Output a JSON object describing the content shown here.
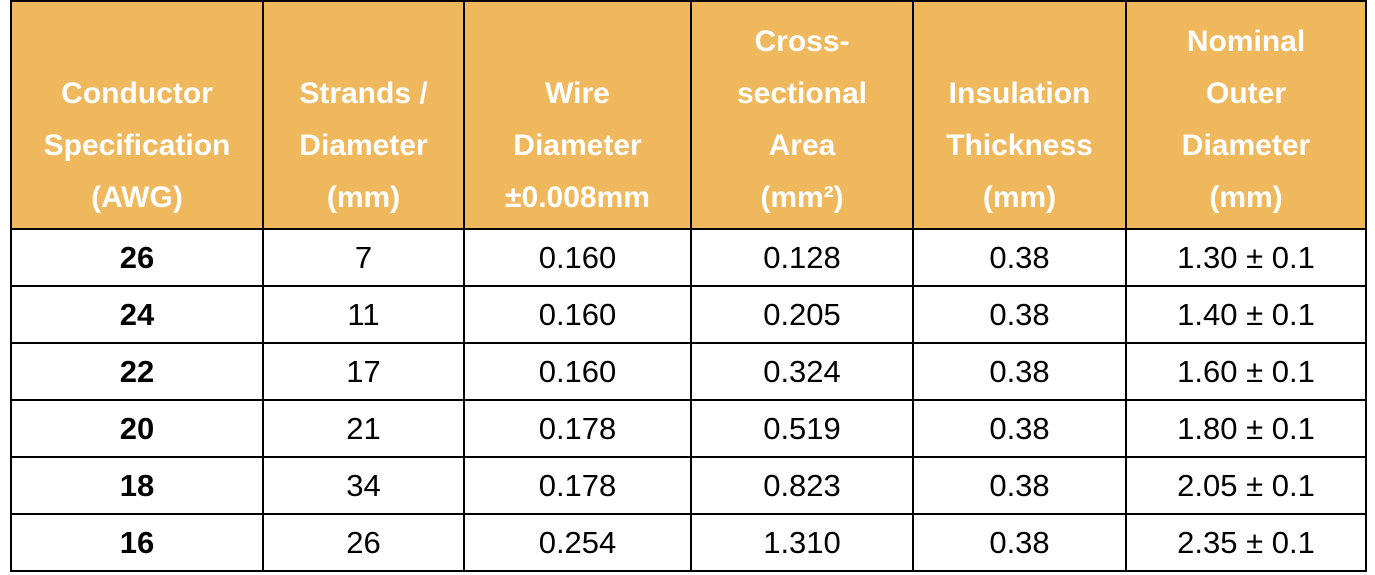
{
  "table": {
    "header": [
      [
        "Conductor",
        "Specification",
        "(AWG)"
      ],
      [
        "Strands /",
        "Diameter",
        "(mm)"
      ],
      [
        "Wire",
        "Diameter",
        "±0.008mm"
      ],
      [
        "Cross-",
        "sectional",
        "Area",
        "(mm²)"
      ],
      [
        "Insulation",
        "Thickness",
        "(mm)"
      ],
      [
        "Nominal",
        "Outer",
        "Diameter",
        "(mm)"
      ]
    ],
    "rows": [
      [
        "26",
        "7",
        "0.160",
        "0.128",
        "0.38",
        "1.30 ± 0.1"
      ],
      [
        "24",
        "11",
        "0.160",
        "0.205",
        "0.38",
        "1.40 ± 0.1"
      ],
      [
        "22",
        "17",
        "0.160",
        "0.324",
        "0.38",
        "1.60 ± 0.1"
      ],
      [
        "20",
        "21",
        "0.178",
        "0.519",
        "0.38",
        "1.80 ± 0.1"
      ],
      [
        "18",
        "34",
        "0.178",
        "0.823",
        "0.38",
        "2.05 ± 0.1"
      ],
      [
        "16",
        "26",
        "0.254",
        "1.310",
        "0.38",
        "2.35 ± 0.1"
      ]
    ]
  }
}
